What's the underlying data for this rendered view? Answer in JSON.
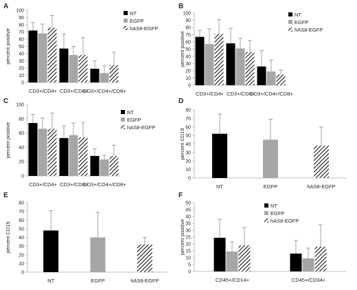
{
  "colors": {
    "NT": "#000000",
    "EGFP": "#a6a6a6",
    "hAS8": "hatch",
    "error_bar": "#8c8c8c",
    "axis": "#bfbfbf"
  },
  "chart_data": [
    {
      "panel": "A",
      "type": "bar",
      "categories": [
        "CD3+/CD4+",
        "CD3+/CD8+",
        "CD3+/CD4+/CD8+"
      ],
      "ylabel": "percent positive",
      "ylim": [
        0,
        100
      ],
      "yticks": [
        0,
        10,
        20,
        30,
        40,
        50,
        60,
        70,
        80,
        90,
        100
      ],
      "legend": "right",
      "series": [
        {
          "name": "NT",
          "values": [
            72,
            47,
            19
          ],
          "errors": [
            11,
            20,
            11
          ]
        },
        {
          "name": "EGFP",
          "values": [
            68,
            38,
            13
          ],
          "errors": [
            13,
            12,
            10
          ]
        },
        {
          "name": "hAS8-EGFP",
          "values": [
            76,
            38,
            24
          ],
          "errors": [
            17,
            24,
            18
          ]
        }
      ]
    },
    {
      "panel": "B",
      "type": "bar",
      "categories": [
        "CD3+/CD4+",
        "CD3+/CD8+",
        "CD3+/CD4+/CD8+"
      ],
      "ylabel": "percent positive",
      "ylim": [
        0,
        100
      ],
      "yticks": [
        0,
        10,
        20,
        30,
        40,
        50,
        60,
        70,
        80,
        90,
        100
      ],
      "legend": "right",
      "series": [
        {
          "name": "NT",
          "values": [
            67,
            58,
            26
          ],
          "errors": [
            9,
            21,
            22
          ]
        },
        {
          "name": "EGFP",
          "values": [
            57,
            51,
            19
          ],
          "errors": [
            21,
            14,
            16
          ]
        },
        {
          "name": "hAS8-EGFP",
          "values": [
            71,
            46,
            15
          ],
          "errors": [
            20,
            16,
            6
          ]
        }
      ]
    },
    {
      "panel": "C",
      "type": "bar",
      "categories": [
        "CD3+/CD4+",
        "CD3+/CD8+",
        "CD3+/CD4+/CD8+"
      ],
      "ylabel": "percent positive",
      "ylim": [
        0,
        100
      ],
      "yticks": [
        0,
        20,
        40,
        60,
        80,
        100
      ],
      "legend": "right",
      "series": [
        {
          "name": "NT",
          "values": [
            74,
            53,
            28
          ],
          "errors": [
            12,
            17,
            10
          ]
        },
        {
          "name": "EGFP",
          "values": [
            66,
            57,
            23
          ],
          "errors": [
            15,
            17,
            6
          ]
        },
        {
          "name": "hAS8-EGFP",
          "values": [
            66,
            54,
            28
          ],
          "errors": [
            22,
            21,
            15
          ]
        }
      ]
    },
    {
      "panel": "D",
      "type": "bar",
      "categories": [
        "NT",
        "EGFP",
        "hAS8-EGFP"
      ],
      "ylabel": "percent CD19",
      "ylim": [
        0,
        80
      ],
      "yticks": [
        0,
        10,
        20,
        30,
        40,
        50,
        60,
        70,
        80
      ],
      "series": [
        {
          "values": [
            52,
            45,
            38
          ],
          "errors": [
            23,
            24,
            22
          ]
        }
      ]
    },
    {
      "panel": "E",
      "type": "bar",
      "categories": [
        "NT",
        "EGFP",
        "hAS8-EGFP"
      ],
      "ylabel": "percent CD19",
      "ylim": [
        0,
        80
      ],
      "yticks": [
        0,
        10,
        20,
        30,
        40,
        50,
        60,
        70,
        80
      ],
      "series": [
        {
          "values": [
            48,
            40,
            32
          ],
          "errors": [
            23,
            29,
            8
          ]
        }
      ]
    },
    {
      "panel": "F",
      "type": "bar",
      "categories": [
        "CD45+/CD14+",
        "CD45+/CD34+"
      ],
      "ylabel": "percent positive",
      "ylim": [
        0,
        50
      ],
      "yticks": [
        0,
        5,
        10,
        15,
        20,
        25,
        30,
        35,
        40,
        45,
        50
      ],
      "legend": "top-right",
      "series": [
        {
          "name": "NT",
          "values": [
            24.5,
            13
          ],
          "errors": [
            13.5,
            9.5
          ]
        },
        {
          "name": "EGFP",
          "values": [
            14.5,
            9.5
          ],
          "errors": [
            7,
            7.5
          ]
        },
        {
          "name": "hAS8-EGFP",
          "values": [
            19,
            18
          ],
          "errors": [
            13,
            16
          ]
        }
      ]
    }
  ]
}
